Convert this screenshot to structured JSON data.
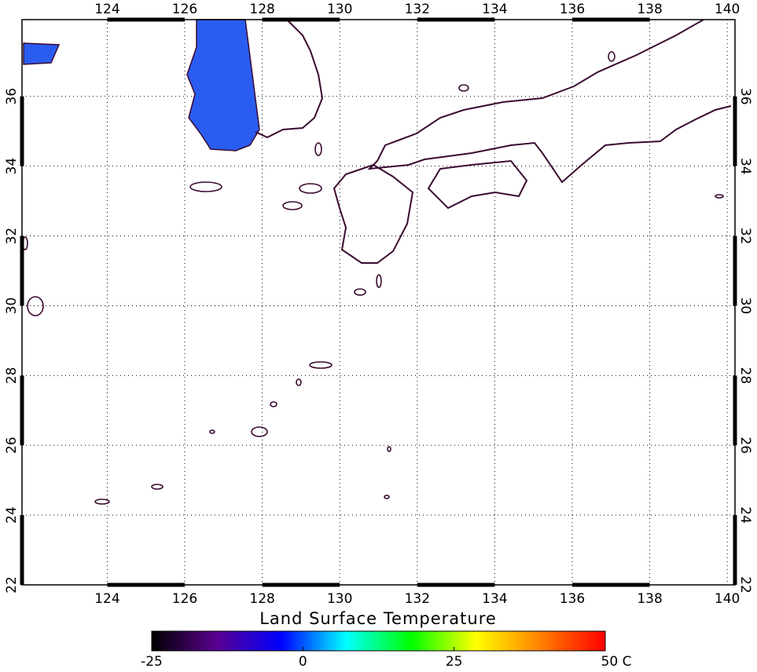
{
  "chart_data": {
    "type": "map",
    "title": "Land Surface Temperature",
    "xlim": [
      121.8,
      140.2
    ],
    "ylim": [
      22,
      38.2
    ],
    "xticks": [
      124,
      126,
      128,
      130,
      132,
      134,
      136,
      138,
      140
    ],
    "yticks": [
      22,
      24,
      26,
      28,
      30,
      32,
      34,
      36
    ],
    "grid": true,
    "colorbar": {
      "lim": [
        -25,
        50
      ],
      "ticks": [
        -25,
        0,
        25,
        {
          "value": 50,
          "label": "50 C"
        }
      ],
      "colors": [
        "#000000",
        "#5a0090",
        "#0000ff",
        "#00ffff",
        "#00ff00",
        "#ffff00",
        "#ff8000",
        "#ff0000"
      ]
    }
  }
}
